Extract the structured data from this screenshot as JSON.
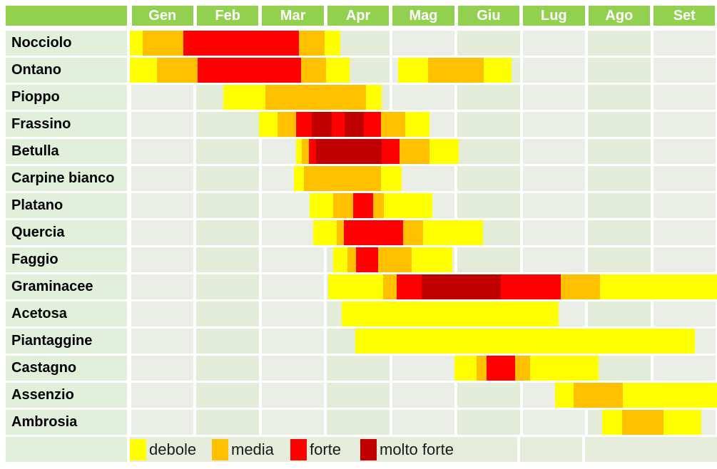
{
  "header": {
    "months": [
      "Gen",
      "Feb",
      "Mar",
      "Apr",
      "Mag",
      "Giu",
      "Lug",
      "Ago",
      "Set"
    ]
  },
  "legend": {
    "items": [
      {
        "label": "debole",
        "level": "debole"
      },
      {
        "label": "media",
        "level": "media"
      },
      {
        "label": "forte",
        "level": "forte"
      },
      {
        "label": "molto forte",
        "level": "molto_forte"
      }
    ]
  },
  "colors": {
    "debole": "#ffff00",
    "media": "#ffc000",
    "forte": "#ff0000",
    "molto_forte": "#c00000",
    "header_bg": "#92d050",
    "header_text": "#ffffff",
    "label_cell_bg": "#e2efda",
    "grid_cell_even": "#ebeee6",
    "grid_cell_odd": "#e2ecd8",
    "legend_strip_bg": "#e6eddd",
    "background": "#ffffff",
    "label_text": "#000000",
    "legend_text": "#1a1a1a"
  },
  "chart_data": {
    "type": "bar",
    "subtype": "pollen-calendar-timeline",
    "orientation": "horizontal",
    "title": "",
    "x_unit": "month",
    "x_labels": [
      "Gen",
      "Feb",
      "Mar",
      "Apr",
      "Mag",
      "Giu",
      "Lug",
      "Ago",
      "Set"
    ],
    "x_range": [
      0,
      9
    ],
    "grid": true,
    "legend_position": "bottom",
    "intensity_levels": [
      "debole",
      "media",
      "forte",
      "molto forte"
    ],
    "rows": [
      {
        "name": "Nocciolo",
        "segments": [
          {
            "from": 0.0,
            "to": 0.2,
            "level": "debole"
          },
          {
            "from": 0.2,
            "to": 0.82,
            "level": "media"
          },
          {
            "from": 0.82,
            "to": 2.59,
            "level": "forte"
          },
          {
            "from": 2.59,
            "to": 2.99,
            "level": "media"
          },
          {
            "from": 2.99,
            "to": 3.23,
            "level": "debole"
          }
        ]
      },
      {
        "name": "Ontano",
        "segments": [
          {
            "from": 0.0,
            "to": 0.42,
            "level": "debole"
          },
          {
            "from": 0.42,
            "to": 1.04,
            "level": "media"
          },
          {
            "from": 1.04,
            "to": 2.62,
            "level": "forte"
          },
          {
            "from": 2.62,
            "to": 3.01,
            "level": "media"
          },
          {
            "from": 3.01,
            "to": 3.37,
            "level": "debole"
          },
          {
            "from": 4.11,
            "to": 4.57,
            "level": "debole"
          },
          {
            "from": 4.57,
            "to": 5.42,
            "level": "media"
          },
          {
            "from": 5.42,
            "to": 5.85,
            "level": "debole"
          }
        ]
      },
      {
        "name": "Pioppo",
        "segments": [
          {
            "from": 1.43,
            "to": 2.08,
            "level": "debole"
          },
          {
            "from": 2.08,
            "to": 3.62,
            "level": "media"
          },
          {
            "from": 3.62,
            "to": 3.86,
            "level": "debole"
          }
        ]
      },
      {
        "name": "Frassino",
        "segments": [
          {
            "from": 1.98,
            "to": 2.26,
            "level": "debole"
          },
          {
            "from": 2.26,
            "to": 2.55,
            "level": "media"
          },
          {
            "from": 2.55,
            "to": 2.79,
            "level": "forte"
          },
          {
            "from": 2.79,
            "to": 3.09,
            "level": "molto_forte"
          },
          {
            "from": 3.09,
            "to": 3.29,
            "level": "forte"
          },
          {
            "from": 3.29,
            "to": 3.59,
            "level": "molto_forte"
          },
          {
            "from": 3.59,
            "to": 3.85,
            "level": "forte"
          },
          {
            "from": 3.85,
            "to": 4.22,
            "level": "media"
          },
          {
            "from": 4.22,
            "to": 4.59,
            "level": "debole"
          }
        ]
      },
      {
        "name": "Betulla",
        "segments": [
          {
            "from": 2.55,
            "to": 2.64,
            "level": "debole"
          },
          {
            "from": 2.64,
            "to": 2.75,
            "level": "media"
          },
          {
            "from": 2.75,
            "to": 2.85,
            "level": "forte"
          },
          {
            "from": 2.85,
            "to": 3.86,
            "level": "molto_forte"
          },
          {
            "from": 3.86,
            "to": 4.13,
            "level": "forte"
          },
          {
            "from": 4.13,
            "to": 4.59,
            "level": "media"
          },
          {
            "from": 4.59,
            "to": 5.04,
            "level": "debole"
          }
        ]
      },
      {
        "name": "Carpine bianco",
        "segments": [
          {
            "from": 2.52,
            "to": 2.67,
            "level": "debole"
          },
          {
            "from": 2.67,
            "to": 3.85,
            "level": "media"
          },
          {
            "from": 3.85,
            "to": 4.17,
            "level": "debole"
          }
        ]
      },
      {
        "name": "Platano",
        "segments": [
          {
            "from": 2.76,
            "to": 3.12,
            "level": "debole"
          },
          {
            "from": 3.12,
            "to": 3.42,
            "level": "media"
          },
          {
            "from": 3.42,
            "to": 3.73,
            "level": "forte"
          },
          {
            "from": 3.73,
            "to": 3.89,
            "level": "media"
          },
          {
            "from": 3.89,
            "to": 4.64,
            "level": "debole"
          }
        ]
      },
      {
        "name": "Quercia",
        "segments": [
          {
            "from": 2.81,
            "to": 3.17,
            "level": "debole"
          },
          {
            "from": 3.17,
            "to": 3.28,
            "level": "media"
          },
          {
            "from": 3.28,
            "to": 4.19,
            "level": "forte"
          },
          {
            "from": 4.19,
            "to": 4.49,
            "level": "media"
          },
          {
            "from": 4.49,
            "to": 5.41,
            "level": "debole"
          }
        ]
      },
      {
        "name": "Faggio",
        "segments": [
          {
            "from": 3.12,
            "to": 3.34,
            "level": "debole"
          },
          {
            "from": 3.34,
            "to": 3.47,
            "level": "media"
          },
          {
            "from": 3.47,
            "to": 3.81,
            "level": "forte"
          },
          {
            "from": 3.81,
            "to": 4.32,
            "level": "media"
          },
          {
            "from": 4.32,
            "to": 4.94,
            "level": "debole"
          }
        ]
      },
      {
        "name": "Graminacee",
        "segments": [
          {
            "from": 3.04,
            "to": 3.88,
            "level": "debole"
          },
          {
            "from": 3.88,
            "to": 4.09,
            "level": "media"
          },
          {
            "from": 4.09,
            "to": 4.47,
            "level": "forte"
          },
          {
            "from": 4.47,
            "to": 5.69,
            "level": "molto_forte"
          },
          {
            "from": 5.69,
            "to": 6.61,
            "level": "forte"
          },
          {
            "from": 6.61,
            "to": 7.21,
            "level": "media"
          },
          {
            "from": 7.21,
            "to": 9.0,
            "level": "debole"
          }
        ]
      },
      {
        "name": "Acetosa",
        "segments": [
          {
            "from": 3.25,
            "to": 6.57,
            "level": "debole"
          }
        ]
      },
      {
        "name": "Piantaggine",
        "segments": [
          {
            "from": 3.46,
            "to": 8.66,
            "level": "debole"
          }
        ]
      },
      {
        "name": "Castagno",
        "segments": [
          {
            "from": 4.98,
            "to": 5.31,
            "level": "debole"
          },
          {
            "from": 5.31,
            "to": 5.47,
            "level": "media"
          },
          {
            "from": 5.47,
            "to": 5.91,
            "level": "forte"
          },
          {
            "from": 5.91,
            "to": 6.14,
            "level": "media"
          },
          {
            "from": 6.14,
            "to": 7.19,
            "level": "debole"
          }
        ]
      },
      {
        "name": "Assenzio",
        "segments": [
          {
            "from": 6.52,
            "to": 6.8,
            "level": "debole"
          },
          {
            "from": 6.8,
            "to": 7.56,
            "level": "media"
          },
          {
            "from": 7.56,
            "to": 9.0,
            "level": "debole"
          }
        ]
      },
      {
        "name": "Ambrosia",
        "segments": [
          {
            "from": 7.24,
            "to": 7.55,
            "level": "debole"
          },
          {
            "from": 7.55,
            "to": 8.18,
            "level": "media"
          },
          {
            "from": 8.18,
            "to": 8.76,
            "level": "debole"
          }
        ]
      }
    ]
  }
}
